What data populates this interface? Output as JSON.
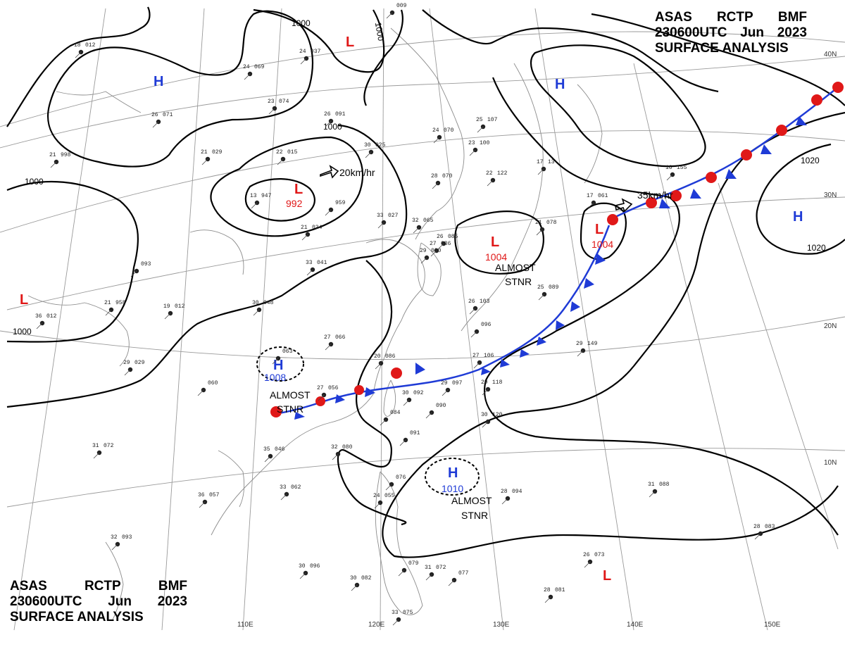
{
  "header": {
    "agency": "ASAS",
    "station": "RCTP",
    "office": "BMF",
    "datetime": "230600UTC",
    "month": "Jun",
    "year": "2023",
    "title": "SURFACE ANALYSIS"
  },
  "colors": {
    "high_pressure": "#1f3bd6",
    "low_pressure": "#e01818",
    "warm_front": "#e01818",
    "cold_front": "#1f3bd6",
    "isobar": "#000000",
    "graticule": "#9a9a9a",
    "coastline": "#8c8c8c"
  },
  "grid": {
    "longitudes": [
      "110E",
      "120E",
      "130E",
      "140E",
      "150E"
    ],
    "latitudes": [
      "40N",
      "30N",
      "20N",
      "10N"
    ]
  },
  "isobars": [
    {
      "label": "1000"
    },
    {
      "label": "1000"
    },
    {
      "label": "1000"
    },
    {
      "label": "1000"
    },
    {
      "label": "1000"
    },
    {
      "label": "1020"
    },
    {
      "label": "1020"
    }
  ],
  "pressure_systems": [
    {
      "id": "h-north-west",
      "type": "H",
      "label": "H",
      "value": ""
    },
    {
      "id": "h-northeast",
      "type": "H",
      "label": "H",
      "value": ""
    },
    {
      "id": "h-east",
      "type": "H",
      "label": "H",
      "value": ""
    },
    {
      "id": "h-china",
      "type": "H",
      "label": "H",
      "value": "1008"
    },
    {
      "id": "h-philippine-sea",
      "type": "H",
      "label": "H",
      "value": "1010"
    },
    {
      "id": "l-north",
      "type": "L",
      "label": "L",
      "value": ""
    },
    {
      "id": "l-mongolia",
      "type": "L",
      "label": "L",
      "value": "992"
    },
    {
      "id": "l-korea",
      "type": "L",
      "label": "L",
      "value": "1004"
    },
    {
      "id": "l-japan",
      "type": "L",
      "label": "L",
      "value": "1004"
    },
    {
      "id": "l-west",
      "type": "L",
      "label": "L",
      "value": ""
    },
    {
      "id": "l-south",
      "type": "L",
      "label": "L",
      "value": ""
    }
  ],
  "annotations": {
    "motion_mongolia": "20km/hr",
    "motion_japan": "35km/hr",
    "stnr_korea": [
      "ALMOST",
      "STNR"
    ],
    "stnr_china": [
      "ALMOST",
      "STNR"
    ],
    "stnr_south": [
      "ALMOST",
      "STNR"
    ]
  },
  "stations": [
    {
      "t": "18",
      "p": "012"
    },
    {
      "t": "24",
      "p": "037"
    },
    {
      "t": "24",
      "p": "069"
    },
    {
      "t": "26",
      "p": "071"
    },
    {
      "t": "23",
      "p": "074"
    },
    {
      "t": "26",
      "p": "091"
    },
    {
      "t": "22",
      "p": "015"
    },
    {
      "t": "21",
      "p": "029"
    },
    {
      "t": "21",
      "p": "998"
    },
    {
      "t": "13",
      "p": "947"
    },
    {
      "t": "",
      "p": "959"
    },
    {
      "t": "21",
      "p": "034"
    },
    {
      "t": "30",
      "p": "025"
    },
    {
      "t": "24",
      "p": "070"
    },
    {
      "t": "",
      "p": "009"
    },
    {
      "t": "28",
      "p": "070"
    },
    {
      "t": "33",
      "p": "027"
    },
    {
      "t": "32",
      "p": "065"
    },
    {
      "t": "22",
      "p": "122"
    },
    {
      "t": "23",
      "p": "100"
    },
    {
      "t": "25",
      "p": "107"
    },
    {
      "t": "29",
      "p": "090"
    },
    {
      "t": "27",
      "p": "036"
    },
    {
      "t": "33",
      "p": "041"
    },
    {
      "t": "30",
      "p": "048"
    },
    {
      "t": "",
      "p": "093"
    },
    {
      "t": "21",
      "p": "958"
    },
    {
      "t": "19",
      "p": "012"
    },
    {
      "t": "36",
      "p": "012"
    },
    {
      "t": "29",
      "p": "029"
    },
    {
      "t": "27",
      "p": "066"
    },
    {
      "t": "",
      "p": "063"
    },
    {
      "t": "",
      "p": "060"
    },
    {
      "t": "27",
      "p": "056"
    },
    {
      "t": "20",
      "p": "086"
    },
    {
      "t": "30",
      "p": "092"
    },
    {
      "t": "29",
      "p": "097"
    },
    {
      "t": "27",
      "p": "106"
    },
    {
      "t": "29",
      "p": "118"
    },
    {
      "t": "30",
      "p": "120"
    },
    {
      "t": "",
      "p": "090"
    },
    {
      "t": "",
      "p": "091"
    },
    {
      "t": "",
      "p": "084"
    },
    {
      "t": "31",
      "p": "072"
    },
    {
      "t": "35",
      "p": "046"
    },
    {
      "t": "32",
      "p": "080"
    },
    {
      "t": "33",
      "p": "062"
    },
    {
      "t": "36",
      "p": "057"
    },
    {
      "t": "",
      "p": "076"
    },
    {
      "t": "24",
      "p": "055"
    },
    {
      "t": "28",
      "p": "094"
    },
    {
      "t": "31",
      "p": "088"
    },
    {
      "t": "29",
      "p": "149"
    },
    {
      "t": "28",
      "p": "083"
    },
    {
      "t": "26",
      "p": "073"
    },
    {
      "t": "32",
      "p": "093"
    },
    {
      "t": "30",
      "p": "096"
    },
    {
      "t": "30",
      "p": "082"
    },
    {
      "t": "",
      "p": "079"
    },
    {
      "t": "31",
      "p": "072"
    },
    {
      "t": "",
      "p": "077"
    },
    {
      "t": "28",
      "p": "081"
    },
    {
      "t": "33",
      "p": "075"
    },
    {
      "t": "17",
      "p": "061"
    },
    {
      "t": "16",
      "p": "155"
    },
    {
      "t": "21",
      "p": "078"
    },
    {
      "t": "26",
      "p": "085"
    },
    {
      "t": "25",
      "p": "089"
    },
    {
      "t": "",
      "p": "096"
    },
    {
      "t": "26",
      "p": "103"
    },
    {
      "t": "17",
      "p": "13"
    }
  ]
}
